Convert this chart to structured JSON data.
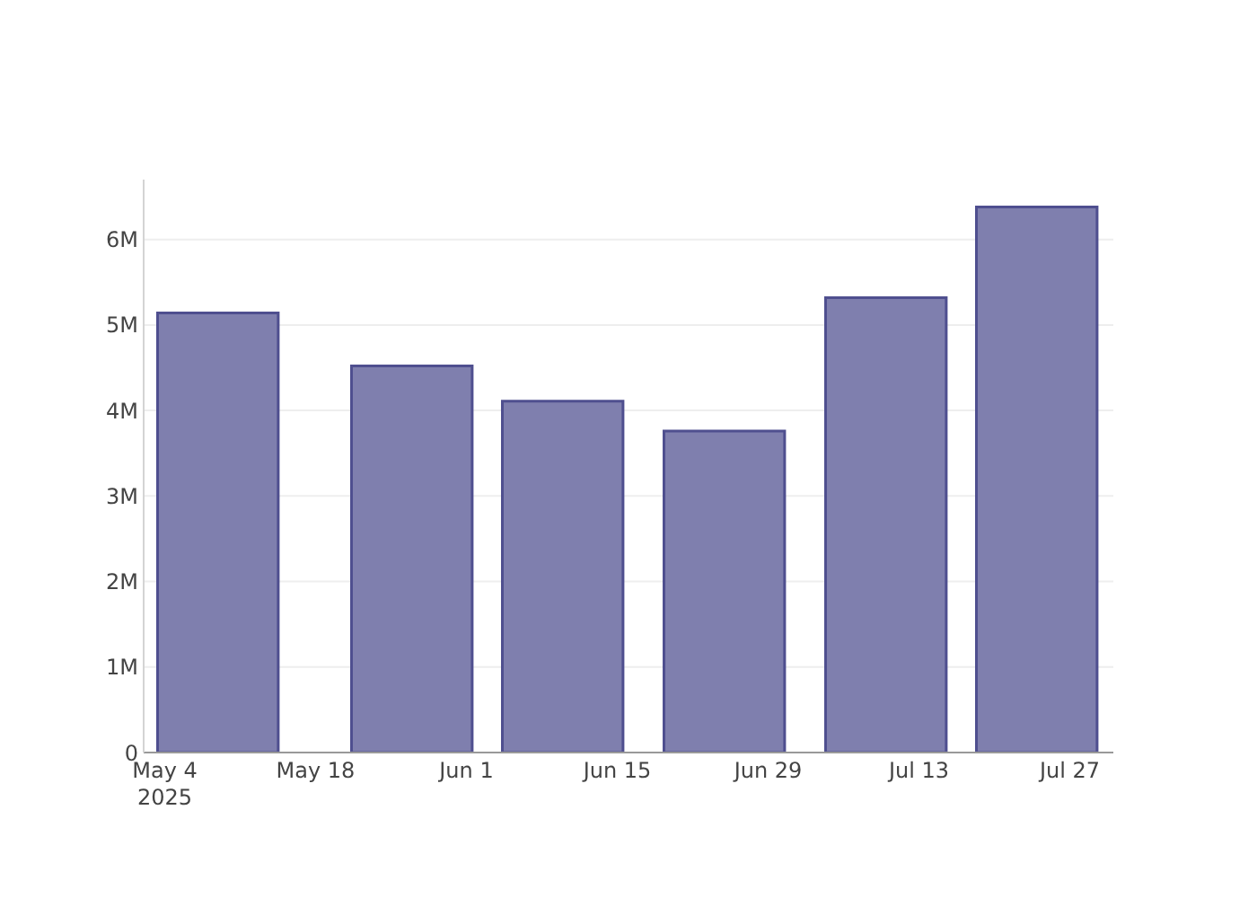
{
  "chart_data": {
    "type": "bar",
    "x": [
      "2025-05-09",
      "2025-05-27",
      "2025-06-10",
      "2025-06-25",
      "2025-07-10",
      "2025-07-24"
    ],
    "values": [
      5140000,
      4520000,
      4110000,
      3760000,
      5320000,
      6380000
    ],
    "color": "#7f7fae",
    "xlim": [
      "2025-05-02T01:00",
      "2025-07-31T01:00"
    ],
    "xticks": [
      {
        "value": "2025-05-04",
        "label": "May 4\n2025"
      },
      {
        "value": "2025-05-18",
        "label": "May 18"
      },
      {
        "value": "2025-06-01",
        "label": "Jun 1"
      },
      {
        "value": "2025-06-15",
        "label": "Jun 15"
      },
      {
        "value": "2025-06-29",
        "label": "Jun 29"
      },
      {
        "value": "2025-07-13",
        "label": "Jul 13"
      },
      {
        "value": "2025-07-27",
        "label": "Jul 27"
      }
    ],
    "ylim": [
      0,
      6700000
    ],
    "yticks": [
      0,
      {
        "value": 1000000,
        "label": "1M"
      },
      {
        "value": 2000000,
        "label": "2M"
      },
      {
        "value": 3000000,
        "label": "3M"
      },
      {
        "value": 4000000,
        "label": "4M"
      },
      {
        "value": 5000000,
        "label": "5M"
      },
      {
        "value": 6000000,
        "label": "6M"
      }
    ],
    "grid": "y"
  }
}
